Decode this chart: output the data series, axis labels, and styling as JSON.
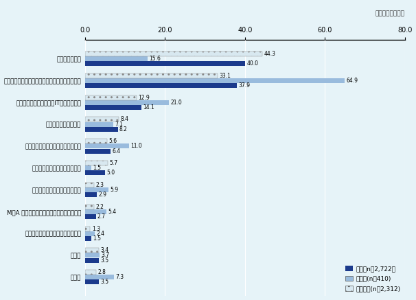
{
  "categories": [
    "確保していない",
    "新卒、中途採用による直接雇用による確保、育成",
    "特定技術を持った企業やIT技術者と契約",
    "外国人・留学生の採用",
    "国内の大学や研究機関との連携強化",
    "確保したいが方法がわからない",
    "海外の子会社や関連会社で採用",
    "M＆A や他社への出資などを通じた人材獲得",
    "海外の大学や研究機関との連携強化",
    "その他",
    "無回答"
  ],
  "zentai": [
    40.0,
    37.9,
    14.1,
    8.2,
    6.4,
    5.0,
    2.9,
    2.7,
    1.5,
    3.5,
    3.5
  ],
  "daikigyou": [
    15.6,
    64.9,
    21.0,
    7.1,
    11.0,
    1.5,
    5.9,
    5.4,
    2.4,
    3.7,
    7.3
  ],
  "chushou": [
    44.3,
    33.1,
    12.9,
    8.4,
    5.6,
    5.7,
    2.3,
    2.2,
    1.3,
    3.4,
    2.8
  ],
  "color_zentai": "#1B3A8C",
  "color_daikigyou": "#99BBDD",
  "color_chushou": "#D8E8F0",
  "hatch_chushou": "..",
  "background_color": "#E6F3F8",
  "xlim": [
    0,
    80
  ],
  "xticks": [
    0.0,
    20.0,
    40.0,
    60.0,
    80.0
  ],
  "xlabel_note": "（複数回答、％）",
  "legend_zentai": "全体（n＝2,722）",
  "legend_daikigyou": "大企業(n＝410)",
  "legend_chushou": "中小企業(n＝2,312)"
}
